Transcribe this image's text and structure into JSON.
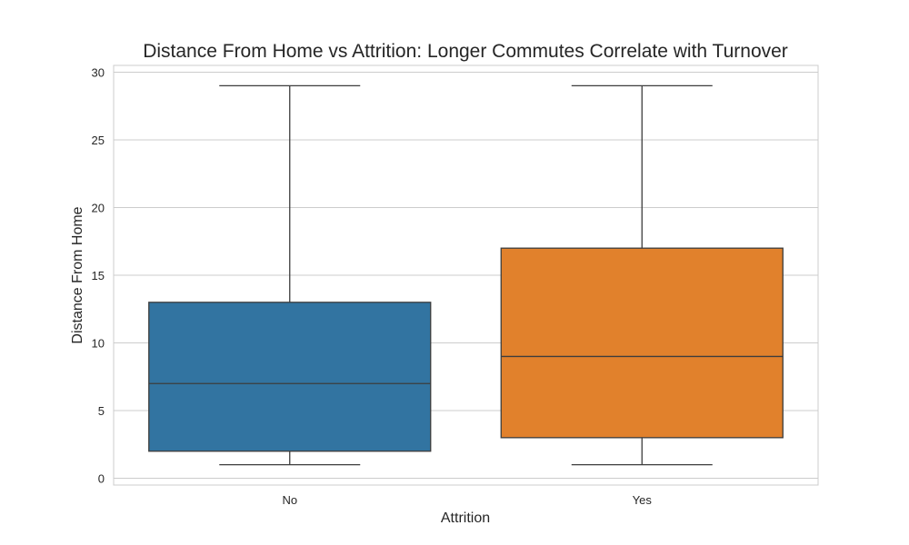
{
  "chart_data": {
    "type": "box",
    "title": "Distance From Home vs Attrition: Longer Commutes Correlate with Turnover",
    "xlabel": "Attrition",
    "ylabel": "Distance From Home",
    "categories": [
      "No",
      "Yes"
    ],
    "boxes": [
      {
        "category": "No",
        "min": 1,
        "q1": 2,
        "median": 7,
        "q3": 13,
        "max": 29,
        "color": "#3274a1"
      },
      {
        "category": "Yes",
        "min": 1,
        "q1": 3,
        "median": 9,
        "q3": 17,
        "max": 29,
        "color": "#e1812c"
      }
    ],
    "ylim": [
      -0.5,
      30.5
    ],
    "yticks": [
      0,
      5,
      10,
      15,
      20,
      25,
      30
    ],
    "grid": true,
    "grid_axis": "y",
    "colors": {
      "grid": "#cccccc",
      "frame": "#cccccc",
      "line": "#3d3d3d",
      "text": "#262626"
    }
  }
}
